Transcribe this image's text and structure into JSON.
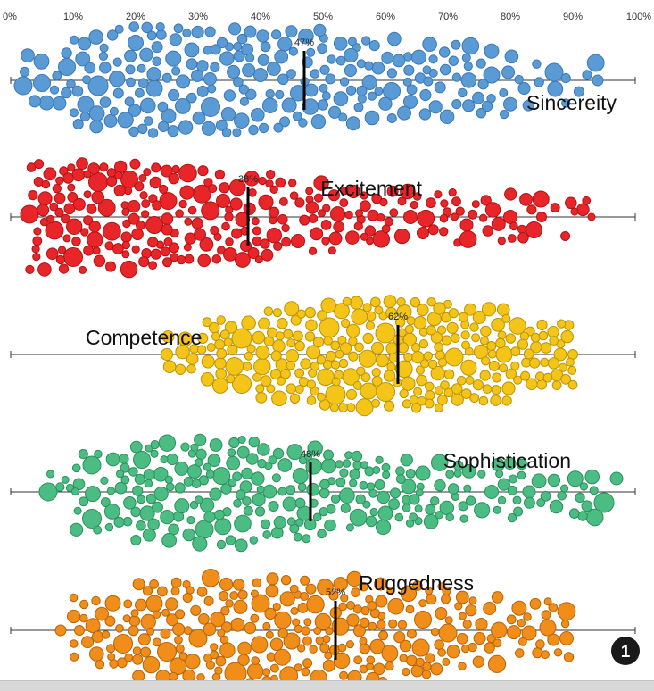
{
  "chart_data": {
    "type": "beeswarm",
    "xlim": [
      0,
      100
    ],
    "x_ticks": [
      "0%",
      "10%",
      "20%",
      "30%",
      "40%",
      "50%",
      "60%",
      "70%",
      "80%",
      "90%",
      "100%"
    ],
    "x_tick_values": [
      0,
      10,
      20,
      30,
      40,
      50,
      60,
      70,
      80,
      90,
      100
    ],
    "series": [
      {
        "name": "Sincereity",
        "color": "#5b9bd5",
        "stroke": "#3a78b5",
        "median": 47,
        "median_label": "47%",
        "min": 2,
        "max": 94,
        "label_anchor": "right",
        "big_points": [
          [
            2,
            0.2,
            20
          ],
          [
            5,
            0.1,
            19
          ],
          [
            9,
            -0.5,
            19
          ],
          [
            12,
            0.9,
            18
          ],
          [
            14,
            0.2,
            22
          ],
          [
            20,
            -1.4,
            17
          ],
          [
            23,
            0.3,
            18
          ],
          [
            32,
            1.0,
            21
          ],
          [
            40,
            -0.2,
            15
          ],
          [
            61,
            0.4,
            19
          ],
          [
            64,
            0.8,
            15
          ],
          [
            77,
            -0.2,
            18
          ],
          [
            87,
            -0.3,
            20
          ],
          [
            94,
            0.0,
            12
          ]
        ],
        "hints": [
          [
            2,
            10,
            0.3
          ],
          [
            8,
            16,
            0.8
          ],
          [
            16,
            26,
            1.0
          ],
          [
            26,
            38,
            1.0
          ],
          [
            38,
            50,
            0.9
          ],
          [
            50,
            62,
            0.7
          ],
          [
            62,
            72,
            0.55
          ],
          [
            72,
            80,
            0.45
          ],
          [
            80,
            90,
            0.2
          ]
        ],
        "count": 230,
        "size_min": 9,
        "size_max": 19,
        "seed": 11
      },
      {
        "name": "Excitement",
        "color": "#e8262a",
        "stroke": "#b01214",
        "median": 38,
        "median_label": "38%",
        "min": 3,
        "max": 93,
        "label_anchor": "right",
        "big_points": [
          [
            3,
            -0.1,
            20
          ],
          [
            7,
            0.5,
            20
          ],
          [
            10,
            1.5,
            21
          ],
          [
            14,
            -1.3,
            21
          ],
          [
            19,
            -1.4,
            19
          ],
          [
            23,
            0.3,
            19
          ],
          [
            34,
            -0.6,
            15
          ],
          [
            46,
            0.9,
            15
          ],
          [
            52,
            0.8,
            14
          ],
          [
            64,
            0.0,
            15
          ],
          [
            66,
            0.6,
            13
          ],
          [
            73,
            0.3,
            14
          ],
          [
            80,
            0.0,
            15
          ],
          [
            85,
            0.0,
            11
          ],
          [
            93,
            0.0,
            8
          ]
        ],
        "hints": [
          [
            3,
            12,
            1.0
          ],
          [
            12,
            22,
            1.0
          ],
          [
            22,
            32,
            0.9
          ],
          [
            32,
            42,
            0.7
          ],
          [
            42,
            52,
            0.45
          ],
          [
            52,
            62,
            0.3
          ],
          [
            62,
            72,
            0.22
          ],
          [
            72,
            82,
            0.15
          ],
          [
            82,
            93,
            0.06
          ]
        ],
        "count": 250,
        "size_min": 8,
        "size_max": 20,
        "seed": 23
      },
      {
        "name": "Competence",
        "color": "#f4c518",
        "stroke": "#bb9205",
        "median": 62,
        "median_label": "62%",
        "min": 25,
        "max": 90,
        "label_anchor": "left",
        "big_points": [
          [
            25,
            0.0,
            13
          ],
          [
            37,
            -0.6,
            22
          ],
          [
            37,
            1.1,
            21
          ],
          [
            52,
            1.5,
            22
          ],
          [
            51,
            -1.0,
            22
          ],
          [
            60,
            -0.8,
            22
          ],
          [
            60,
            1.4,
            21
          ],
          [
            71,
            0.1,
            20
          ],
          [
            79,
            0.0,
            18
          ],
          [
            88,
            0.0,
            14
          ],
          [
            90,
            0.0,
            11
          ]
        ],
        "hints": [
          [
            31,
            40,
            0.45
          ],
          [
            40,
            50,
            0.8
          ],
          [
            50,
            60,
            1.0
          ],
          [
            60,
            70,
            1.0
          ],
          [
            70,
            80,
            0.8
          ],
          [
            80,
            90,
            0.35
          ]
        ],
        "count": 270,
        "size_min": 9,
        "size_max": 20,
        "seed": 37
      },
      {
        "name": "Sophistication",
        "color": "#4bbd83",
        "stroke": "#2b8f5c",
        "median": 48,
        "median_label": "48%",
        "min": 6,
        "max": 97,
        "label_anchor": "right",
        "big_points": [
          [
            6,
            0.0,
            20
          ],
          [
            13,
            1.0,
            21
          ],
          [
            13,
            -1.0,
            20
          ],
          [
            21,
            -1.2,
            19
          ],
          [
            31,
            1.4,
            20
          ],
          [
            47,
            0.8,
            16
          ],
          [
            60,
            0.8,
            16
          ],
          [
            66,
            -0.7,
            16
          ],
          [
            77,
            0.0,
            15
          ],
          [
            83,
            0.0,
            14
          ],
          [
            95,
            0.4,
            22
          ],
          [
            97,
            -0.5,
            14
          ]
        ],
        "hints": [
          [
            10,
            20,
            0.6
          ],
          [
            20,
            30,
            0.9
          ],
          [
            30,
            40,
            1.0
          ],
          [
            40,
            50,
            0.8
          ],
          [
            50,
            60,
            0.55
          ],
          [
            60,
            70,
            0.4
          ],
          [
            70,
            82,
            0.3
          ],
          [
            82,
            94,
            0.22
          ]
        ],
        "count": 250,
        "size_min": 8,
        "size_max": 19,
        "seed": 53
      },
      {
        "name": "Ruggedness",
        "color": "#f18d19",
        "stroke": "#b5630a",
        "median": 52,
        "median_label": "52%",
        "min": 8,
        "max": 90,
        "label_anchor": "left-above",
        "big_points": [
          [
            8,
            0.0,
            12
          ],
          [
            11,
            0.0,
            11
          ],
          [
            18,
            0.5,
            21
          ],
          [
            23,
            -1.0,
            18
          ],
          [
            25,
            0.8,
            21
          ],
          [
            30,
            0.3,
            20
          ],
          [
            36,
            1.6,
            24
          ],
          [
            40,
            -1.0,
            20
          ],
          [
            45,
            0.4,
            18
          ],
          [
            66,
            -0.4,
            19
          ],
          [
            70,
            0.1,
            20
          ],
          [
            83,
            0.1,
            16
          ],
          [
            86,
            -0.1,
            18
          ],
          [
            89,
            0.3,
            15
          ]
        ],
        "hints": [
          [
            10,
            20,
            0.45
          ],
          [
            20,
            30,
            0.85
          ],
          [
            30,
            40,
            1.0
          ],
          [
            40,
            50,
            1.0
          ],
          [
            50,
            60,
            0.95
          ],
          [
            60,
            70,
            0.8
          ],
          [
            70,
            78,
            0.55
          ],
          [
            80,
            90,
            0.3
          ]
        ],
        "count": 260,
        "size_min": 8,
        "size_max": 20,
        "seed": 71
      }
    ]
  },
  "badge": {
    "label": "1"
  }
}
